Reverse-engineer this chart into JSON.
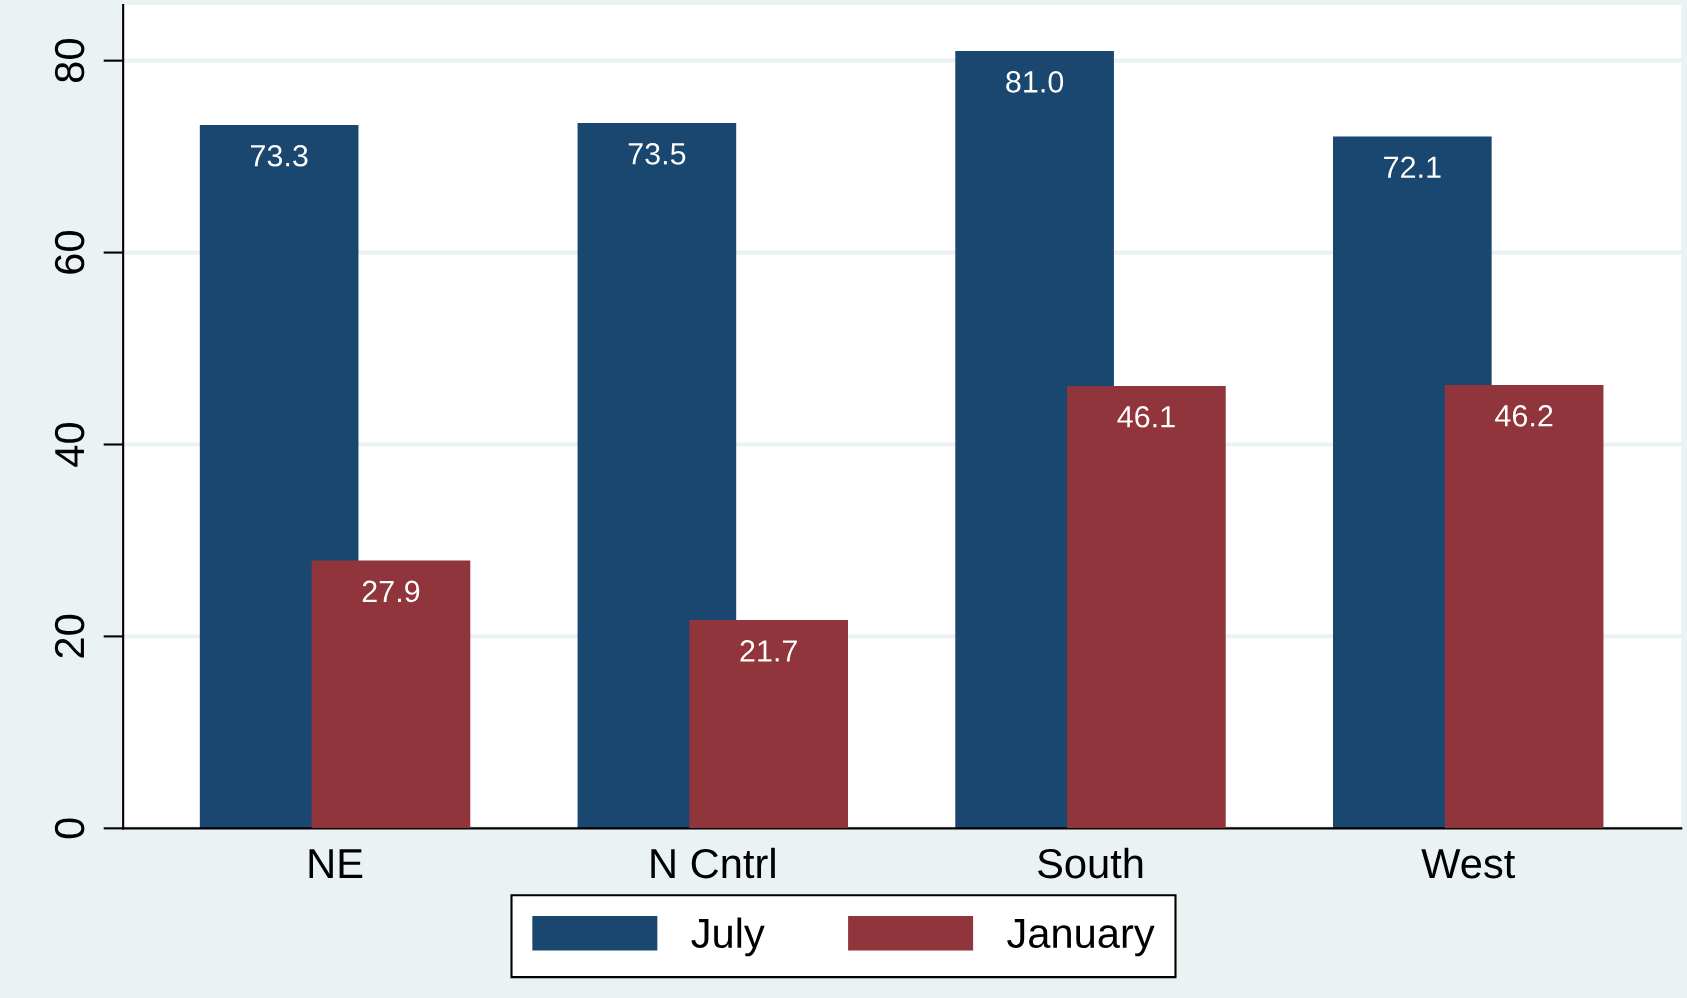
{
  "chart_data": {
    "type": "bar",
    "categories": [
      "NE",
      "N Cntrl",
      "South",
      "West"
    ],
    "series": [
      {
        "name": "July",
        "color": "#1a476f",
        "values": [
          73.3,
          73.5,
          81.0,
          72.1
        ],
        "value_labels": [
          "73.3",
          "73.5",
          "81.0",
          "72.1"
        ]
      },
      {
        "name": "January",
        "color": "#90353b",
        "values": [
          27.9,
          21.7,
          46.1,
          46.2
        ],
        "value_labels": [
          "27.9",
          "21.7",
          "46.1",
          "46.2"
        ]
      }
    ],
    "ylim": [
      0,
      85.8
    ],
    "yticks": [
      0,
      20,
      40,
      60,
      80
    ],
    "grid": "y",
    "legend": "bottom"
  }
}
